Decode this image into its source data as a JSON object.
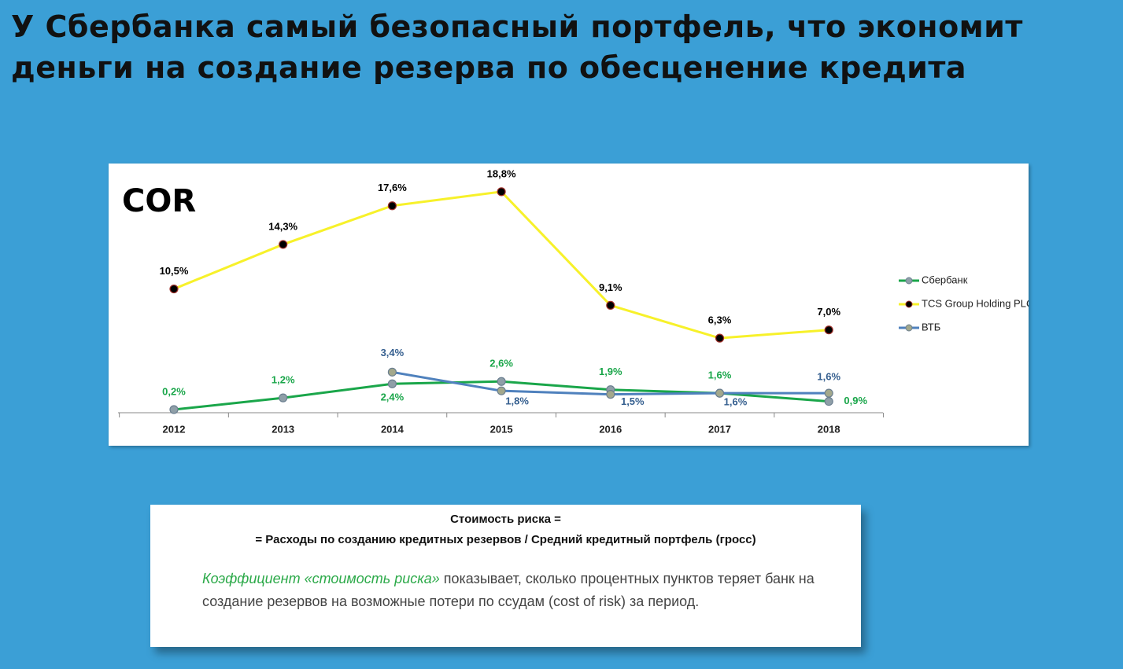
{
  "heading": [
    "У Сбербанка самый безопасный портфель, что экономит",
    "деньги на создание резерва по обесценение кредита"
  ],
  "chart_data": {
    "type": "line",
    "title": "COR",
    "categories": [
      "2012",
      "2013",
      "2014",
      "2015",
      "2016",
      "2017",
      "2018"
    ],
    "ylim": [
      0,
      20
    ],
    "series": [
      {
        "name": "Сбербанк",
        "color": "#1aa64a",
        "marker_color": "#8f9fa8",
        "label_color": "#1aa64a",
        "values": [
          0.2,
          1.2,
          2.4,
          2.6,
          1.9,
          1.6,
          0.9
        ],
        "value_labels": [
          "0,2%",
          "1,2%",
          "2,4%",
          "2,6%",
          "1,9%",
          "1,6%",
          "0,9%"
        ]
      },
      {
        "name": "TCS Group Holding PLC",
        "color": "#f7f12a",
        "marker_color": "#000000",
        "label_color": "#000000",
        "values": [
          10.5,
          14.3,
          17.6,
          18.8,
          9.1,
          6.3,
          7.0
        ],
        "value_labels": [
          "10,5%",
          "14,3%",
          "17,6%",
          "18,8%",
          "9,1%",
          "6,3%",
          "7,0%"
        ]
      },
      {
        "name": "ВТБ",
        "color": "#4f81bd",
        "marker_color": "#a3a88c",
        "label_color": "#355f8f",
        "values": [
          null,
          null,
          3.4,
          1.8,
          1.5,
          1.6,
          1.6
        ],
        "value_labels": [
          null,
          null,
          "3,4%",
          "1,8%",
          "1,5%",
          "1,6%",
          "1,6%"
        ]
      }
    ]
  },
  "note": {
    "title": "Стоимость риска =",
    "formula": "= Расходы по созданию кредитных резервов / Средний кредитный портфель (гросс)",
    "term": "Коэффициент «стоимость риска»",
    "text": "показывает, сколько процентных пунктов теряет банк на создание резервов на возможные потери по ссудам (cost of risk) за период."
  }
}
